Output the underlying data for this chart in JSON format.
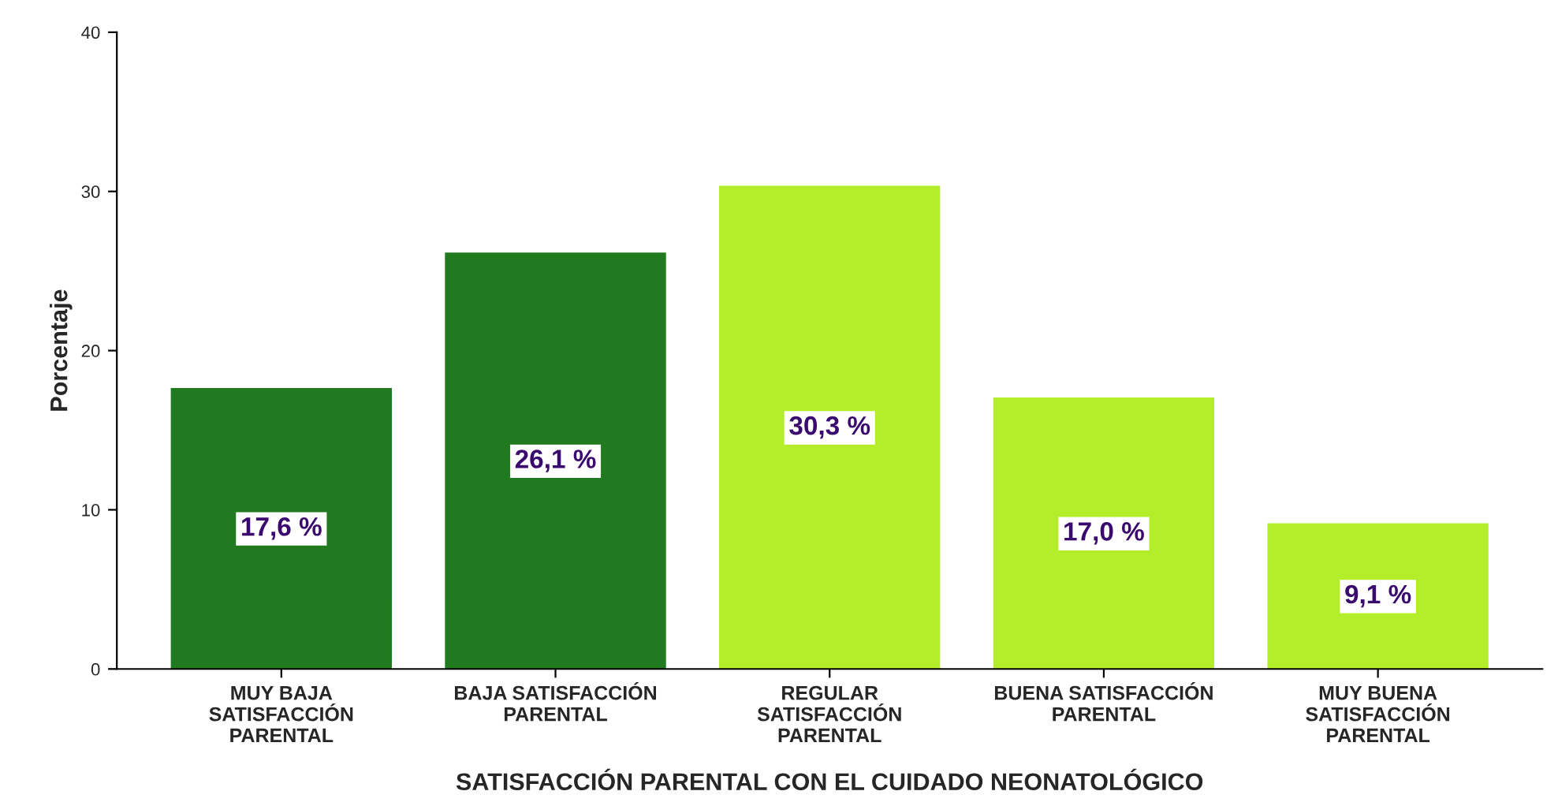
{
  "chart_data": {
    "type": "bar",
    "xlabel": "SATISFACCIÓN PARENTAL CON EL CUIDADO NEONATOLÓGICO",
    "ylabel": "Porcentaje",
    "categories": [
      "MUY BAJA\nSATISFACCIÓN\nPARENTAL",
      "BAJA SATISFACCIÓN\nPARENTAL",
      "REGULAR\nSATISFACCIÓN\nPARENTAL",
      "BUENA SATISFACCIÓN\nPARENTAL",
      "MUY BUENA\nSATISFACCIÓN\nPARENTAL"
    ],
    "values": [
      17.6,
      26.1,
      30.3,
      17.0,
      9.1
    ],
    "value_labels": [
      "17,6 %",
      "26,1 %",
      "30,3 %",
      "17,0 %",
      "9,1 %"
    ],
    "colors": [
      "#217a1f",
      "#217a1f",
      "#b4ee2a",
      "#b4ee2a",
      "#b4ee2a"
    ],
    "ylim": [
      0,
      40
    ],
    "yticks": [
      0,
      10,
      20,
      30,
      40
    ],
    "grid": false
  }
}
